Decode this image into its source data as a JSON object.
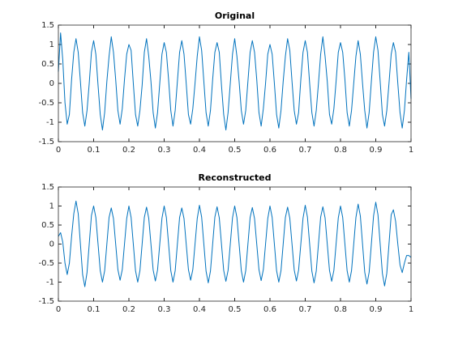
{
  "chart_data": [
    {
      "type": "line",
      "title": "Original",
      "color": "#0072bd",
      "x": [
        0,
        0.00625,
        0.0125,
        0.01875,
        0.025,
        0.03125,
        0.0375,
        0.04375,
        0.05,
        0.05625,
        0.0625,
        0.06875,
        0.075,
        0.08125,
        0.0875,
        0.09375,
        0.1,
        0.10625,
        0.1125,
        0.11875,
        0.125,
        0.13125,
        0.1375,
        0.14375,
        0.15,
        0.15625,
        0.1625,
        0.16875,
        0.175,
        0.18125,
        0.1875,
        0.19375,
        0.2,
        0.20625,
        0.2125,
        0.21875,
        0.225,
        0.23125,
        0.2375,
        0.24375,
        0.25,
        0.25625,
        0.2625,
        0.26875,
        0.275,
        0.28125,
        0.2875,
        0.29375,
        0.3,
        0.30625,
        0.3125,
        0.31875,
        0.325,
        0.33125,
        0.3375,
        0.34375,
        0.35,
        0.35625,
        0.3625,
        0.36875,
        0.375,
        0.38125,
        0.3875,
        0.39375,
        0.4,
        0.40625,
        0.4125,
        0.41875,
        0.425,
        0.43125,
        0.4375,
        0.44375,
        0.45,
        0.45625,
        0.4625,
        0.46875,
        0.475,
        0.48125,
        0.4875,
        0.49375,
        0.5,
        0.50625,
        0.5125,
        0.51875,
        0.525,
        0.53125,
        0.5375,
        0.54375,
        0.55,
        0.55625,
        0.5625,
        0.56875,
        0.575,
        0.58125,
        0.5875,
        0.59375,
        0.6,
        0.60625,
        0.6125,
        0.61875,
        0.625,
        0.63125,
        0.6375,
        0.64375,
        0.65,
        0.65625,
        0.6625,
        0.66875,
        0.675,
        0.68125,
        0.6875,
        0.69375,
        0.7,
        0.70625,
        0.7125,
        0.71875,
        0.725,
        0.73125,
        0.7375,
        0.74375,
        0.75,
        0.75625,
        0.7625,
        0.76875,
        0.775,
        0.78125,
        0.7875,
        0.79375,
        0.8,
        0.80625,
        0.8125,
        0.81875,
        0.825,
        0.83125,
        0.8375,
        0.84375,
        0.85,
        0.85625,
        0.8625,
        0.86875,
        0.875,
        0.88125,
        0.8875,
        0.89375,
        0.9,
        0.90625,
        0.9125,
        0.91875,
        0.925,
        0.93125,
        0.9375,
        0.94375,
        0.95,
        0.95625,
        0.9625,
        0.96875,
        0.975,
        0.98125,
        0.9875,
        0.99375,
        1
      ],
      "values": [
        0.3,
        1.3,
        0.6,
        -0.5,
        -1.05,
        -0.8,
        0.1,
        0.8,
        1.15,
        0.8,
        0.05,
        -0.75,
        -1.1,
        -0.7,
        0.0,
        0.8,
        1.1,
        0.75,
        -0.05,
        -0.8,
        -1.2,
        -0.75,
        0.05,
        0.7,
        1.2,
        0.8,
        0.1,
        -0.7,
        -1.05,
        -0.65,
        0.1,
        0.75,
        1.0,
        0.85,
        0.0,
        -0.8,
        -1.1,
        -0.7,
        -0.05,
        0.8,
        1.15,
        0.7,
        0.05,
        -0.75,
        -1.15,
        -0.75,
        0.0,
        0.75,
        1.05,
        0.8,
        0.1,
        -0.7,
        -1.1,
        -0.7,
        0.05,
        0.8,
        1.1,
        0.75,
        0.0,
        -0.8,
        -1.05,
        -0.65,
        0.0,
        0.7,
        1.2,
        0.85,
        0.05,
        -0.75,
        -1.1,
        -0.7,
        0.1,
        0.8,
        1.05,
        0.8,
        -0.05,
        -0.8,
        -1.2,
        -0.75,
        0.0,
        0.75,
        1.15,
        0.7,
        0.05,
        -0.7,
        -1.05,
        -0.7,
        0.05,
        0.8,
        1.1,
        0.8,
        0.1,
        -0.75,
        -1.1,
        -0.65,
        0.0,
        0.75,
        1.0,
        0.75,
        0.0,
        -0.8,
        -1.15,
        -0.7,
        0.05,
        0.7,
        1.15,
        0.85,
        0.05,
        -0.7,
        -1.05,
        -0.75,
        0.1,
        0.8,
        1.1,
        0.8,
        0.0,
        -0.75,
        -1.1,
        -0.7,
        0.0,
        0.75,
        1.2,
        0.7,
        0.05,
        -0.8,
        -1.05,
        -0.65,
        0.05,
        0.8,
        1.05,
        0.8,
        0.1,
        -0.75,
        -1.1,
        -0.7,
        0.0,
        0.7,
        1.1,
        0.75,
        0.0,
        -0.7,
        -1.15,
        -0.75,
        0.05,
        0.8,
        1.2,
        0.85,
        0.05,
        -0.8,
        -1.1,
        -0.7,
        0.0,
        0.75,
        1.05,
        0.8,
        0.0,
        -0.75,
        -1.15,
        -0.7,
        0.1,
        0.8,
        -0.4
      ],
      "xlim": [
        0,
        1
      ],
      "xticks": [
        0,
        0.1,
        0.2,
        0.3,
        0.4,
        0.5,
        0.6,
        0.7,
        0.8,
        0.9,
        1
      ],
      "ylim": [
        -1.5,
        1.5
      ],
      "yticks": [
        -1.5,
        -1,
        -0.5,
        0,
        0.5,
        1,
        1.5
      ]
    },
    {
      "type": "line",
      "title": "Reconstructed",
      "color": "#0072bd",
      "x": [
        0,
        0.00625,
        0.0125,
        0.01875,
        0.025,
        0.03125,
        0.0375,
        0.04375,
        0.05,
        0.05625,
        0.0625,
        0.06875,
        0.075,
        0.08125,
        0.0875,
        0.09375,
        0.1,
        0.10625,
        0.1125,
        0.11875,
        0.125,
        0.13125,
        0.1375,
        0.14375,
        0.15,
        0.15625,
        0.1625,
        0.16875,
        0.175,
        0.18125,
        0.1875,
        0.19375,
        0.2,
        0.20625,
        0.2125,
        0.21875,
        0.225,
        0.23125,
        0.2375,
        0.24375,
        0.25,
        0.25625,
        0.2625,
        0.26875,
        0.275,
        0.28125,
        0.2875,
        0.29375,
        0.3,
        0.30625,
        0.3125,
        0.31875,
        0.325,
        0.33125,
        0.3375,
        0.34375,
        0.35,
        0.35625,
        0.3625,
        0.36875,
        0.375,
        0.38125,
        0.3875,
        0.39375,
        0.4,
        0.40625,
        0.4125,
        0.41875,
        0.425,
        0.43125,
        0.4375,
        0.44375,
        0.45,
        0.45625,
        0.4625,
        0.46875,
        0.475,
        0.48125,
        0.4875,
        0.49375,
        0.5,
        0.50625,
        0.5125,
        0.51875,
        0.525,
        0.53125,
        0.5375,
        0.54375,
        0.55,
        0.55625,
        0.5625,
        0.56875,
        0.575,
        0.58125,
        0.5875,
        0.59375,
        0.6,
        0.60625,
        0.6125,
        0.61875,
        0.625,
        0.63125,
        0.6375,
        0.64375,
        0.65,
        0.65625,
        0.6625,
        0.66875,
        0.675,
        0.68125,
        0.6875,
        0.69375,
        0.7,
        0.70625,
        0.7125,
        0.71875,
        0.725,
        0.73125,
        0.7375,
        0.74375,
        0.75,
        0.75625,
        0.7625,
        0.76875,
        0.775,
        0.78125,
        0.7875,
        0.79375,
        0.8,
        0.80625,
        0.8125,
        0.81875,
        0.825,
        0.83125,
        0.8375,
        0.84375,
        0.85,
        0.85625,
        0.8625,
        0.86875,
        0.875,
        0.88125,
        0.8875,
        0.89375,
        0.9,
        0.90625,
        0.9125,
        0.91875,
        0.925,
        0.93125,
        0.9375,
        0.94375,
        0.95,
        0.95625,
        0.9625,
        0.96875,
        0.975,
        0.98125,
        0.9875,
        0.99375,
        1
      ],
      "values": [
        0.2,
        0.3,
        0.05,
        -0.5,
        -0.8,
        -0.5,
        0.2,
        0.8,
        1.13,
        0.8,
        0.0,
        -0.8,
        -1.12,
        -0.75,
        0.0,
        0.75,
        1.0,
        0.7,
        0.0,
        -0.7,
        -1.0,
        -0.7,
        0.0,
        0.7,
        0.95,
        0.67,
        0.0,
        -0.67,
        -0.95,
        -0.67,
        0.0,
        0.67,
        1.0,
        0.7,
        0.0,
        -0.7,
        -1.0,
        -0.7,
        0.0,
        0.7,
        0.97,
        0.68,
        0.0,
        -0.68,
        -0.97,
        -0.68,
        0.0,
        0.68,
        1.0,
        0.7,
        0.0,
        -0.7,
        -1.0,
        -0.7,
        0.0,
        0.7,
        0.95,
        0.67,
        0.0,
        -0.67,
        -0.95,
        -0.67,
        0.0,
        0.67,
        1.02,
        0.71,
        0.0,
        -0.71,
        -1.02,
        -0.71,
        0.0,
        0.71,
        0.98,
        0.69,
        0.0,
        -0.69,
        -0.98,
        -0.69,
        0.0,
        0.69,
        1.0,
        0.7,
        0.0,
        -0.7,
        -1.0,
        -0.7,
        0.0,
        0.7,
        0.96,
        0.67,
        0.0,
        -0.67,
        -0.96,
        -0.67,
        0.0,
        0.67,
        1.0,
        0.7,
        0.0,
        -0.7,
        -1.0,
        -0.7,
        0.0,
        0.7,
        0.97,
        0.68,
        0.0,
        -0.68,
        -0.97,
        -0.68,
        0.0,
        0.68,
        1.02,
        0.71,
        0.0,
        -0.71,
        -1.02,
        -0.71,
        0.0,
        0.71,
        0.98,
        0.69,
        0.0,
        -0.69,
        -0.98,
        -0.69,
        0.0,
        0.69,
        1.0,
        0.7,
        0.0,
        -0.7,
        -1.0,
        -0.7,
        0.0,
        0.7,
        1.05,
        0.74,
        0.0,
        -0.74,
        -1.05,
        -0.74,
        0.0,
        0.74,
        1.1,
        0.77,
        0.0,
        -0.77,
        -1.1,
        -0.77,
        0.0,
        0.77,
        0.9,
        0.6,
        0.0,
        -0.55,
        -0.75,
        -0.5,
        -0.3,
        -0.3,
        -0.35
      ],
      "xlim": [
        0,
        1
      ],
      "xticks": [
        0,
        0.1,
        0.2,
        0.3,
        0.4,
        0.5,
        0.6,
        0.7,
        0.8,
        0.9,
        1
      ],
      "ylim": [
        -1.5,
        1.5
      ],
      "yticks": [
        -1.5,
        -1,
        -0.5,
        0,
        0.5,
        1,
        1.5
      ]
    }
  ]
}
